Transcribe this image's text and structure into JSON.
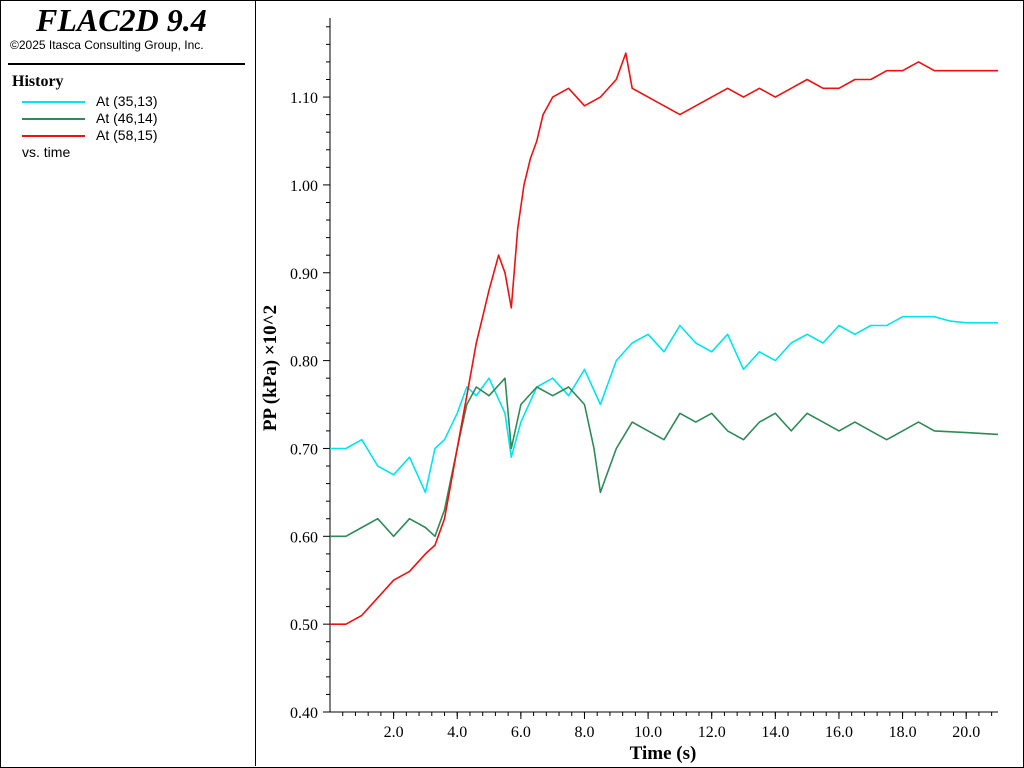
{
  "sidebar": {
    "app_title": "FLAC2D 9.4",
    "copyright": "©2025 Itasca Consulting Group, Inc.",
    "history_heading": "History",
    "legend": [
      {
        "label": "At (35,13)",
        "color": "#00e5ee"
      },
      {
        "label": "At (46,14)",
        "color": "#2e8b57"
      },
      {
        "label": "At (58,15)",
        "color": "#ee1111"
      }
    ],
    "vs_label": "vs. time"
  },
  "chart_data": {
    "type": "line",
    "xlabel": "Time (s)",
    "ylabel": "PP (kPa) ×10^2",
    "xlim": [
      0,
      21
    ],
    "ylim": [
      0.4,
      1.19
    ],
    "x_ticks": [
      "2.0",
      "4.0",
      "6.0",
      "8.0",
      "10.0",
      "12.0",
      "14.0",
      "16.0",
      "18.0",
      "20.0"
    ],
    "y_ticks": [
      "0.40",
      "0.50",
      "0.60",
      "0.70",
      "0.80",
      "0.90",
      "1.00",
      "1.10"
    ],
    "x_tick_values": [
      2,
      4,
      6,
      8,
      10,
      12,
      14,
      16,
      18,
      20
    ],
    "y_tick_values": [
      0.4,
      0.5,
      0.6,
      0.7,
      0.8,
      0.9,
      1.0,
      1.1
    ],
    "grid": false,
    "series": [
      {
        "name": "At (35,13)",
        "color": "#00e5ee",
        "x": [
          0.0,
          0.5,
          1.0,
          1.5,
          2.0,
          2.5,
          3.0,
          3.3,
          3.6,
          4.0,
          4.3,
          4.6,
          5.0,
          5.5,
          5.7,
          6.0,
          6.5,
          7.0,
          7.5,
          8.0,
          8.5,
          9.0,
          9.5,
          10.0,
          10.5,
          11.0,
          11.5,
          12.0,
          12.5,
          13.0,
          13.5,
          14.0,
          14.5,
          15.0,
          15.5,
          16.0,
          16.5,
          17.0,
          17.5,
          18.0,
          18.5,
          19.0,
          19.5,
          20.0,
          21.0
        ],
        "y": [
          0.7,
          0.7,
          0.71,
          0.68,
          0.67,
          0.69,
          0.65,
          0.7,
          0.71,
          0.74,
          0.77,
          0.76,
          0.78,
          0.74,
          0.69,
          0.73,
          0.77,
          0.78,
          0.76,
          0.79,
          0.75,
          0.8,
          0.82,
          0.83,
          0.81,
          0.84,
          0.82,
          0.81,
          0.83,
          0.79,
          0.81,
          0.8,
          0.82,
          0.83,
          0.82,
          0.84,
          0.83,
          0.84,
          0.84,
          0.85,
          0.85,
          0.85,
          0.845,
          0.843,
          0.843
        ]
      },
      {
        "name": "At (46,14)",
        "color": "#2e8b57",
        "x": [
          0.0,
          0.5,
          1.0,
          1.5,
          2.0,
          2.5,
          3.0,
          3.3,
          3.6,
          4.0,
          4.3,
          4.6,
          5.0,
          5.5,
          5.7,
          6.0,
          6.5,
          7.0,
          7.5,
          8.0,
          8.3,
          8.5,
          9.0,
          9.5,
          10.0,
          10.5,
          11.0,
          11.5,
          12.0,
          12.5,
          13.0,
          13.5,
          14.0,
          14.5,
          15.0,
          15.5,
          16.0,
          16.5,
          17.0,
          17.5,
          18.0,
          18.5,
          19.0,
          20.0,
          21.0
        ],
        "y": [
          0.6,
          0.6,
          0.61,
          0.62,
          0.6,
          0.62,
          0.61,
          0.6,
          0.63,
          0.7,
          0.75,
          0.77,
          0.76,
          0.78,
          0.7,
          0.75,
          0.77,
          0.76,
          0.77,
          0.75,
          0.7,
          0.65,
          0.7,
          0.73,
          0.72,
          0.71,
          0.74,
          0.73,
          0.74,
          0.72,
          0.71,
          0.73,
          0.74,
          0.72,
          0.74,
          0.73,
          0.72,
          0.73,
          0.72,
          0.71,
          0.72,
          0.73,
          0.72,
          0.718,
          0.716
        ]
      },
      {
        "name": "At (58,15)",
        "color": "#ee1111",
        "x": [
          0.0,
          0.5,
          1.0,
          1.5,
          2.0,
          2.5,
          3.0,
          3.3,
          3.6,
          3.8,
          4.0,
          4.2,
          4.4,
          4.6,
          4.8,
          5.0,
          5.3,
          5.5,
          5.7,
          5.9,
          6.1,
          6.3,
          6.5,
          6.7,
          7.0,
          7.5,
          8.0,
          8.5,
          9.0,
          9.3,
          9.5,
          10.0,
          10.5,
          11.0,
          11.5,
          12.0,
          12.5,
          13.0,
          13.5,
          14.0,
          14.5,
          15.0,
          15.5,
          16.0,
          16.5,
          17.0,
          17.5,
          18.0,
          18.5,
          19.0,
          20.0,
          21.0
        ],
        "y": [
          0.5,
          0.5,
          0.51,
          0.53,
          0.55,
          0.56,
          0.58,
          0.59,
          0.62,
          0.66,
          0.7,
          0.74,
          0.78,
          0.82,
          0.85,
          0.88,
          0.92,
          0.9,
          0.86,
          0.95,
          1.0,
          1.03,
          1.05,
          1.08,
          1.1,
          1.11,
          1.09,
          1.1,
          1.12,
          1.15,
          1.11,
          1.1,
          1.09,
          1.08,
          1.09,
          1.1,
          1.11,
          1.1,
          1.11,
          1.1,
          1.11,
          1.12,
          1.11,
          1.11,
          1.12,
          1.12,
          1.13,
          1.13,
          1.14,
          1.13,
          1.13,
          1.13
        ]
      }
    ]
  }
}
